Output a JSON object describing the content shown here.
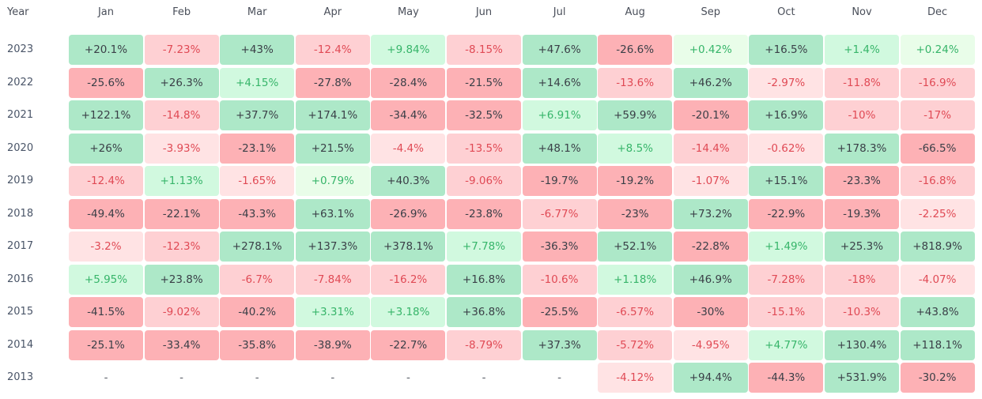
{
  "chart_data": {
    "type": "heatmap",
    "title": "",
    "row_header": "Year",
    "columns": [
      "Jan",
      "Feb",
      "Mar",
      "Apr",
      "May",
      "Jun",
      "Jul",
      "Aug",
      "Sep",
      "Oct",
      "Nov",
      "Dec"
    ],
    "rows": [
      {
        "year": "2023",
        "cells": [
          "+20.1%",
          "-7.23%",
          "+43%",
          "-12.4%",
          "+9.84%",
          "-8.15%",
          "+47.6%",
          "-26.6%",
          "+0.42%",
          "+16.5%",
          "+1.4%",
          "+0.24%"
        ]
      },
      {
        "year": "2022",
        "cells": [
          "-25.6%",
          "+26.3%",
          "+4.15%",
          "-27.8%",
          "-28.4%",
          "-21.5%",
          "+14.6%",
          "-13.6%",
          "+46.2%",
          "-2.97%",
          "-11.8%",
          "-16.9%"
        ]
      },
      {
        "year": "2021",
        "cells": [
          "+122.1%",
          "-14.8%",
          "+37.7%",
          "+174.1%",
          "-34.4%",
          "-32.5%",
          "+6.91%",
          "+59.9%",
          "-20.1%",
          "+16.9%",
          "-10%",
          "-17%"
        ]
      },
      {
        "year": "2020",
        "cells": [
          "+26%",
          "-3.93%",
          "-23.1%",
          "+21.5%",
          "-4.4%",
          "-13.5%",
          "+48.1%",
          "+8.5%",
          "-14.4%",
          "-0.62%",
          "+178.3%",
          "-66.5%"
        ]
      },
      {
        "year": "2019",
        "cells": [
          "-12.4%",
          "+1.13%",
          "-1.65%",
          "+0.79%",
          "+40.3%",
          "-9.06%",
          "-19.7%",
          "-19.2%",
          "-1.07%",
          "+15.1%",
          "-23.3%",
          "-16.8%"
        ]
      },
      {
        "year": "2018",
        "cells": [
          "-49.4%",
          "-22.1%",
          "-43.3%",
          "+63.1%",
          "-26.9%",
          "-23.8%",
          "-6.77%",
          "-23%",
          "+73.2%",
          "-22.9%",
          "-19.3%",
          "-2.25%"
        ]
      },
      {
        "year": "2017",
        "cells": [
          "-3.2%",
          "-12.3%",
          "+278.1%",
          "+137.3%",
          "+378.1%",
          "+7.78%",
          "-36.3%",
          "+52.1%",
          "-22.8%",
          "+1.49%",
          "+25.3%",
          "+818.9%"
        ]
      },
      {
        "year": "2016",
        "cells": [
          "+5.95%",
          "+23.8%",
          "-6.7%",
          "-7.84%",
          "-16.2%",
          "+16.8%",
          "-10.6%",
          "+1.18%",
          "+46.9%",
          "-7.28%",
          "-18%",
          "-4.07%"
        ]
      },
      {
        "year": "2015",
        "cells": [
          "-41.5%",
          "-9.02%",
          "-40.2%",
          "+3.31%",
          "+3.18%",
          "+36.8%",
          "-25.5%",
          "-6.57%",
          "-30%",
          "-15.1%",
          "-10.3%",
          "+43.8%"
        ]
      },
      {
        "year": "2014",
        "cells": [
          "-25.1%",
          "-33.4%",
          "-35.8%",
          "-38.9%",
          "-22.7%",
          "-8.79%",
          "+37.3%",
          "-5.72%",
          "-4.95%",
          "+4.77%",
          "+130.4%",
          "+118.1%"
        ]
      },
      {
        "year": "2013",
        "cells": [
          "-",
          "-",
          "-",
          "-",
          "-",
          "-",
          "-",
          "-4.12%",
          "+94.4%",
          "-44.3%",
          "+531.9%",
          "-30.2%"
        ]
      }
    ],
    "colors": {
      "pos_strong_bg": "#ade8c8",
      "pos_weak_bg": "#d1f9df",
      "pos_faint_bg": "#e9fde9",
      "neg_strong_bg": "#fdb1b5",
      "neg_mid_bg": "#fed0d3",
      "neg_faint_bg": "#ffe3e4",
      "strong_text": "#3a3f47",
      "pos_text": "#37b56a",
      "neg_text": "#e04a55",
      "dash_text": "#555a64"
    }
  }
}
